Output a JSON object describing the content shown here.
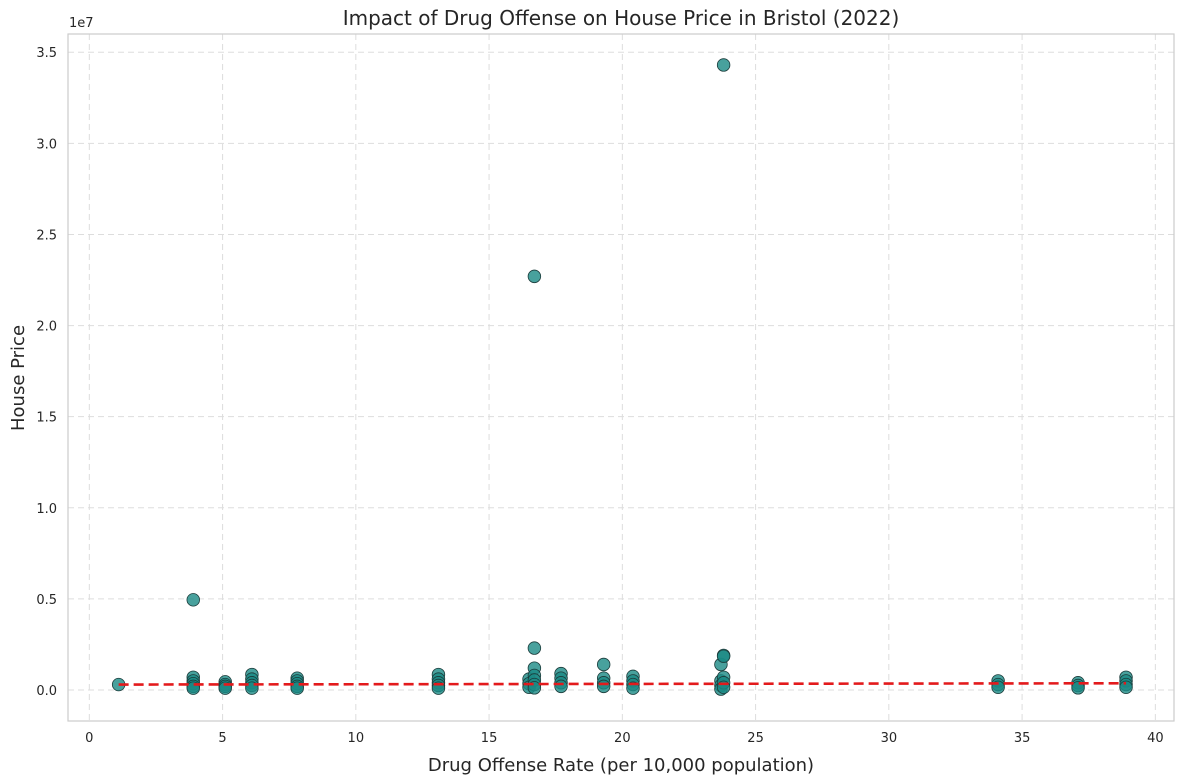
{
  "chart_data": {
    "type": "scatter",
    "title": "Impact of Drug Offense on House Price in Bristol (2022)",
    "xlabel": "Drug Offense Rate (per 10,000 population)",
    "ylabel": "House Price",
    "y_offset_label": "1e7",
    "xlim": [
      -0.8,
      40.7
    ],
    "ylim": [
      -1700000,
      36000000
    ],
    "x_ticks": [
      0,
      5,
      10,
      15,
      20,
      25,
      30,
      35,
      40
    ],
    "x_tick_labels": [
      "0",
      "5",
      "10",
      "15",
      "20",
      "25",
      "30",
      "35",
      "40"
    ],
    "y_ticks": [
      0,
      5000000,
      10000000,
      15000000,
      20000000,
      25000000,
      30000000,
      35000000
    ],
    "y_tick_labels": [
      "0.0",
      "0.5",
      "1.0",
      "1.5",
      "2.0",
      "2.5",
      "3.0",
      "3.5"
    ],
    "grid": true,
    "colors": {
      "points": "#1a8a85",
      "point_edge": "#1b3b3a",
      "trend": "#e31a1c"
    },
    "series": [
      {
        "type": "scatter",
        "points": [
          [
            1.1,
            300000
          ],
          [
            3.9,
            4950000
          ],
          [
            3.9,
            700000
          ],
          [
            3.9,
            500000
          ],
          [
            3.9,
            350000
          ],
          [
            3.9,
            200000
          ],
          [
            3.9,
            100000
          ],
          [
            5.1,
            450000
          ],
          [
            5.1,
            300000
          ],
          [
            5.1,
            200000
          ],
          [
            5.1,
            100000
          ],
          [
            6.1,
            850000
          ],
          [
            6.1,
            600000
          ],
          [
            6.1,
            400000
          ],
          [
            6.1,
            250000
          ],
          [
            6.1,
            100000
          ],
          [
            7.8,
            650000
          ],
          [
            7.8,
            500000
          ],
          [
            7.8,
            350000
          ],
          [
            7.8,
            200000
          ],
          [
            7.8,
            100000
          ],
          [
            13.1,
            850000
          ],
          [
            13.1,
            600000
          ],
          [
            13.1,
            400000
          ],
          [
            13.1,
            250000
          ],
          [
            13.1,
            100000
          ],
          [
            16.5,
            600000
          ],
          [
            16.5,
            350000
          ],
          [
            16.5,
            150000
          ],
          [
            16.7,
            22700000
          ],
          [
            16.7,
            2300000
          ],
          [
            16.7,
            1200000
          ],
          [
            16.7,
            800000
          ],
          [
            16.7,
            550000
          ],
          [
            16.7,
            300000
          ],
          [
            16.7,
            120000
          ],
          [
            17.7,
            900000
          ],
          [
            17.7,
            650000
          ],
          [
            17.7,
            400000
          ],
          [
            17.7,
            200000
          ],
          [
            19.3,
            1400000
          ],
          [
            19.3,
            650000
          ],
          [
            19.3,
            400000
          ],
          [
            19.3,
            200000
          ],
          [
            20.4,
            750000
          ],
          [
            20.4,
            500000
          ],
          [
            20.4,
            300000
          ],
          [
            20.4,
            100000
          ],
          [
            23.7,
            1400000
          ],
          [
            23.7,
            500000
          ],
          [
            23.7,
            250000
          ],
          [
            23.7,
            50000
          ],
          [
            23.8,
            34300000
          ],
          [
            23.8,
            1900000
          ],
          [
            23.8,
            1850000
          ],
          [
            23.8,
            700000
          ],
          [
            23.8,
            400000
          ],
          [
            23.8,
            150000
          ],
          [
            34.1,
            500000
          ],
          [
            34.1,
            300000
          ],
          [
            34.1,
            150000
          ],
          [
            37.1,
            400000
          ],
          [
            37.1,
            250000
          ],
          [
            37.1,
            120000
          ],
          [
            38.9,
            700000
          ],
          [
            38.9,
            500000
          ],
          [
            38.9,
            300000
          ],
          [
            38.9,
            150000
          ]
        ]
      },
      {
        "type": "line",
        "style": "dashed",
        "x": [
          1.1,
          38.9
        ],
        "y": [
          300000,
          370000
        ]
      }
    ]
  }
}
